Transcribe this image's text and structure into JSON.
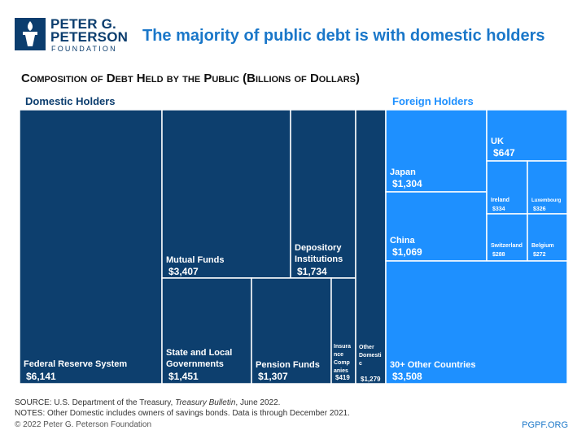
{
  "brand": {
    "line1": "PETER G.",
    "line2": "PETERSON",
    "line3": "FOUNDATION",
    "color": "#0b3d6e",
    "icon": "torch-logo-icon"
  },
  "headline": "The majority of public debt is with domestic holders",
  "colors": {
    "domestic": "#0d3f6e",
    "foreign": "#1e90ff",
    "border": "#ffffff"
  },
  "chart_data": {
    "type": "treemap",
    "title": "Composition of Debt Held by the Public (Billions of Dollars)",
    "groups": [
      {
        "name": "Domestic Holders",
        "items": [
          {
            "label": "Federal Reserve System",
            "value_label": "$6,141",
            "value": 6141
          },
          {
            "label": "Mutual Funds",
            "value_label": "$3,407",
            "value": 3407
          },
          {
            "label": "Depository Institutions",
            "value_label": "$1,734",
            "value": 1734
          },
          {
            "label": "State and Local Governments",
            "value_label": "$1,451",
            "value": 1451
          },
          {
            "label": "Pension Funds",
            "value_label": "$1,307",
            "value": 1307
          },
          {
            "label": "Insurance Companies",
            "value_label": "$419",
            "value": 419
          },
          {
            "label": "Other Domestic",
            "value_label": "$1,279",
            "value": 1279
          }
        ]
      },
      {
        "name": "Foreign Holders",
        "items": [
          {
            "label": "Japan",
            "value_label": "$1,304",
            "value": 1304
          },
          {
            "label": "China",
            "value_label": "$1,069",
            "value": 1069
          },
          {
            "label": "UK",
            "value_label": "$647",
            "value": 647
          },
          {
            "label": "Ireland",
            "value_label": "$334",
            "value": 334
          },
          {
            "label": "Luxembourg",
            "value_label": "$326",
            "value": 326
          },
          {
            "label": "Switzerland",
            "value_label": "$288",
            "value": 288
          },
          {
            "label": "Belgium",
            "value_label": "$272",
            "value": 272
          },
          {
            "label": "30+ Other Countries",
            "value_label": "$3,508",
            "value": 3508
          }
        ]
      }
    ]
  },
  "footer": {
    "source_prefix": "SOURCE: U.S. Department of the Treasury, ",
    "source_italic": "Treasury Bulletin",
    "source_suffix": ", June 2022.",
    "notes": "NOTES: Other Domestic includes owners of savings bonds. Data is through December 2021.",
    "copyright": "© 2022 Peter G. Peterson Foundation",
    "site": "PGPF.ORG"
  }
}
